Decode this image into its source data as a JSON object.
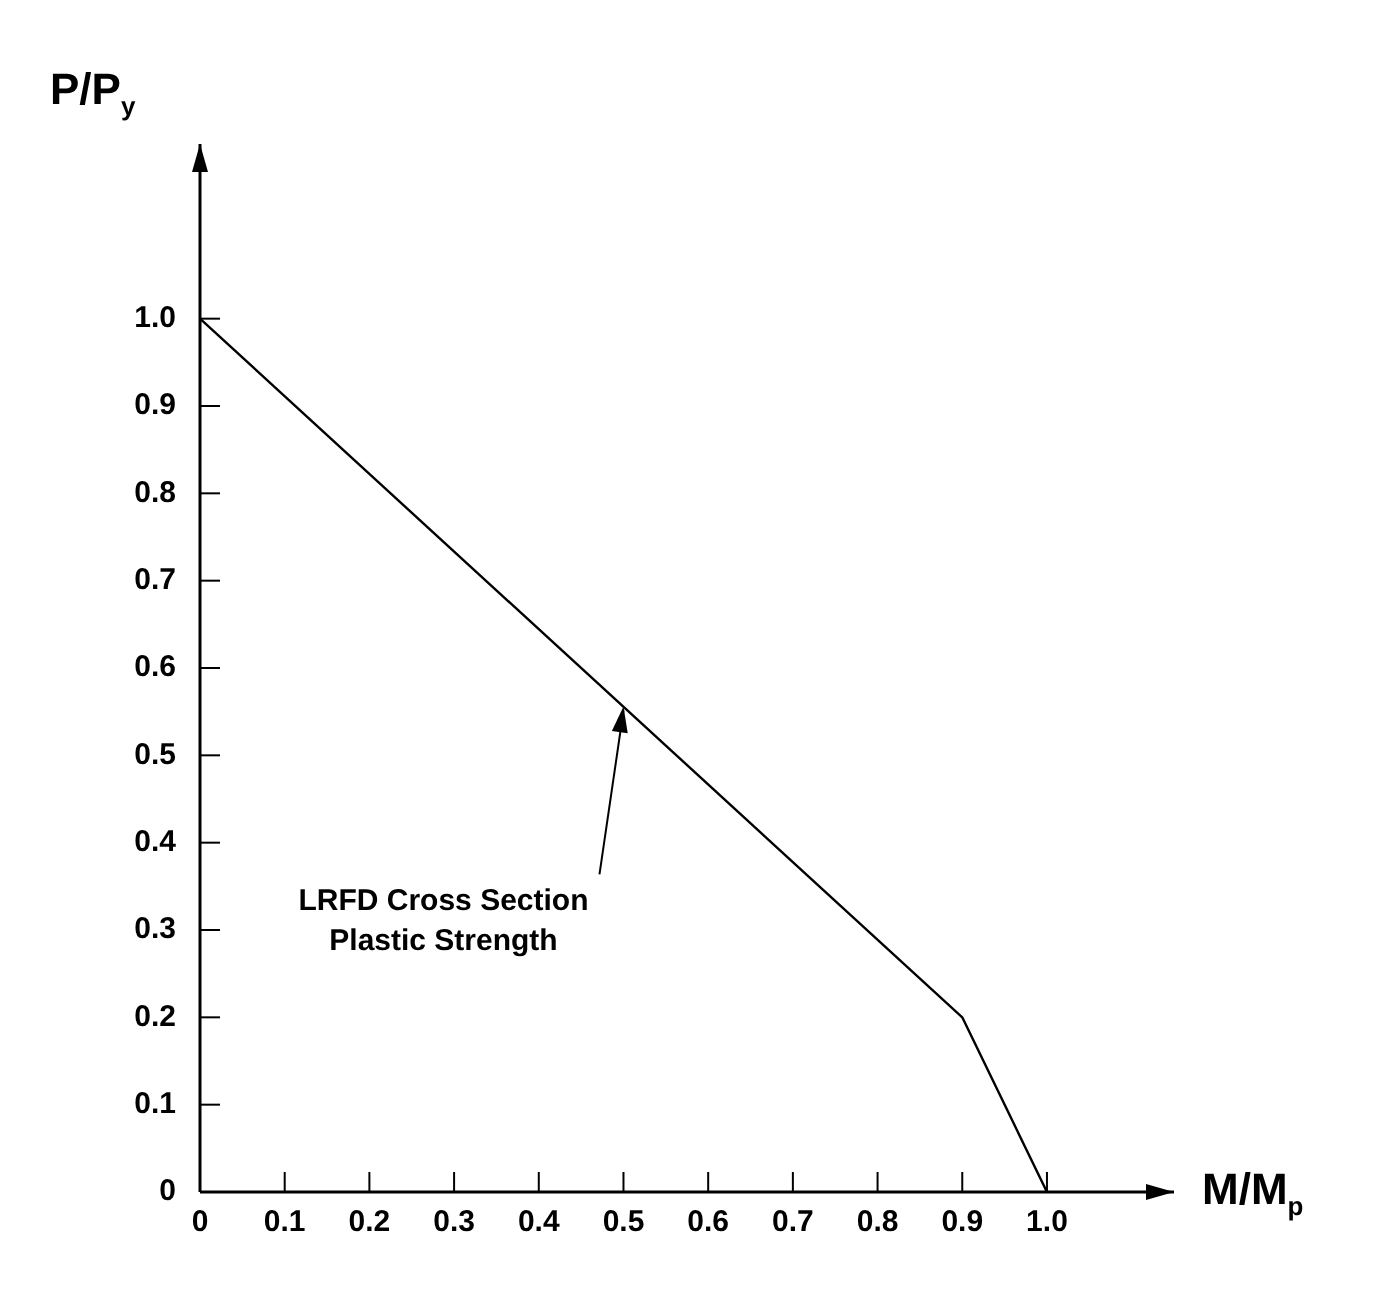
{
  "chart_data": {
    "type": "line",
    "xlabel": "M/M$_{p}$",
    "ylabel": "P/P$_{y}$",
    "x": [
      0,
      0.9,
      1.0
    ],
    "series": [
      {
        "color": "#000000",
        "values": [
          1.0,
          0.2,
          0
        ]
      }
    ],
    "xlim": [
      0,
      1.15
    ],
    "ylim": [
      0,
      1.2
    ],
    "xticks": [
      0,
      0.1,
      0.2,
      0.3,
      0.4,
      0.5,
      0.6,
      0.7,
      0.8,
      0.9,
      {
        "value": 1,
        "label": "1.0"
      }
    ],
    "yticks": [
      0,
      0.1,
      0.2,
      0.3,
      0.4,
      0.5,
      0.6,
      0.7,
      0.8,
      0.9,
      {
        "value": 1,
        "label": "1.0"
      }
    ],
    "annotations": [
      {
        "text": "LRFD Cross Section\nPlastic Strength",
        "x": 0.5,
        "y": 0.556
      }
    ],
    "grid": false,
    "legend": false,
    "marker": "none",
    "line_style": "solid"
  }
}
